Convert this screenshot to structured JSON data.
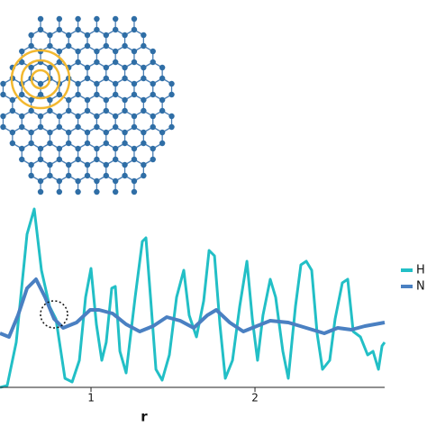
{
  "chart_data": {
    "type": "line",
    "x_label": "r",
    "xlim": [
      0.445,
      2.791
    ],
    "ylim": [
      0,
      1
    ],
    "xticks": [
      1,
      2
    ],
    "series": [
      {
        "name": "H",
        "color": "#22bfc6",
        "x": [
          0.445,
          0.489,
          0.544,
          0.61,
          0.654,
          0.698,
          0.747,
          0.786,
          0.841,
          0.885,
          0.929,
          0.967,
          1.0,
          1.033,
          1.066,
          1.093,
          1.126,
          1.148,
          1.176,
          1.214,
          1.269,
          1.313,
          1.335,
          1.363,
          1.396,
          1.434,
          1.478,
          1.522,
          1.566,
          1.599,
          1.643,
          1.687,
          1.72,
          1.753,
          1.786,
          1.819,
          1.863,
          1.907,
          1.951,
          1.984,
          2.016,
          2.049,
          2.093,
          2.126,
          2.17,
          2.203,
          2.247,
          2.28,
          2.313,
          2.346,
          2.379,
          2.412,
          2.456,
          2.489,
          2.533,
          2.566,
          2.599,
          2.643,
          2.687,
          2.72,
          2.753,
          2.775,
          2.791
        ],
        "values": [
          0,
          0.01,
          0.25,
          0.85,
          0.99,
          0.65,
          0.45,
          0.38,
          0.05,
          0.03,
          0.15,
          0.5,
          0.66,
          0.35,
          0.15,
          0.25,
          0.55,
          0.56,
          0.2,
          0.08,
          0.5,
          0.81,
          0.83,
          0.5,
          0.1,
          0.04,
          0.18,
          0.5,
          0.65,
          0.4,
          0.28,
          0.48,
          0.76,
          0.73,
          0.35,
          0.05,
          0.15,
          0.45,
          0.7,
          0.38,
          0.15,
          0.4,
          0.6,
          0.5,
          0.2,
          0.05,
          0.45,
          0.68,
          0.7,
          0.65,
          0.3,
          0.1,
          0.15,
          0.38,
          0.58,
          0.6,
          0.31,
          0.28,
          0.18,
          0.2,
          0.1,
          0.23,
          0.25
        ]
      },
      {
        "name": "N",
        "color": "#4a80c2",
        "x": [
          0.445,
          0.5,
          0.555,
          0.61,
          0.665,
          0.72,
          0.775,
          0.83,
          0.912,
          0.995,
          1.049,
          1.132,
          1.214,
          1.297,
          1.379,
          1.462,
          1.544,
          1.626,
          1.709,
          1.764,
          1.846,
          1.929,
          2.011,
          2.093,
          2.203,
          2.313,
          2.423,
          2.505,
          2.588,
          2.67,
          2.791
        ],
        "values": [
          0.3,
          0.28,
          0.4,
          0.55,
          0.6,
          0.5,
          0.38,
          0.33,
          0.36,
          0.43,
          0.43,
          0.41,
          0.35,
          0.31,
          0.34,
          0.39,
          0.37,
          0.33,
          0.4,
          0.43,
          0.36,
          0.31,
          0.34,
          0.37,
          0.36,
          0.33,
          0.3,
          0.33,
          0.32,
          0.34,
          0.36
        ]
      }
    ]
  }
}
